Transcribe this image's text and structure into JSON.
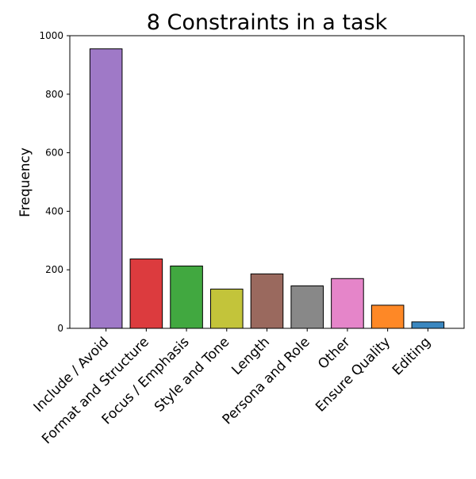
{
  "chart_data": {
    "type": "bar",
    "title": "8 Constraints in a task",
    "xlabel": "",
    "ylabel": "Frequency",
    "ylim": [
      0,
      1000
    ],
    "yticks": [
      0,
      200,
      400,
      600,
      800,
      1000
    ],
    "categories": [
      "Include / Avoid",
      "Format and Structure",
      "Focus / Emphasis",
      "Style and Tone",
      "Length",
      "Persona and Role",
      "Other",
      "Ensure Quality",
      "Editing"
    ],
    "values": [
      955,
      237,
      213,
      134,
      186,
      145,
      170,
      79,
      22
    ],
    "colors": [
      "#9f79c7",
      "#dc3b3e",
      "#41a840",
      "#c3c43a",
      "#9a695e",
      "#888888",
      "#e585c9",
      "#fe8826",
      "#3a87c0"
    ],
    "grid": false,
    "legend": "none"
  }
}
